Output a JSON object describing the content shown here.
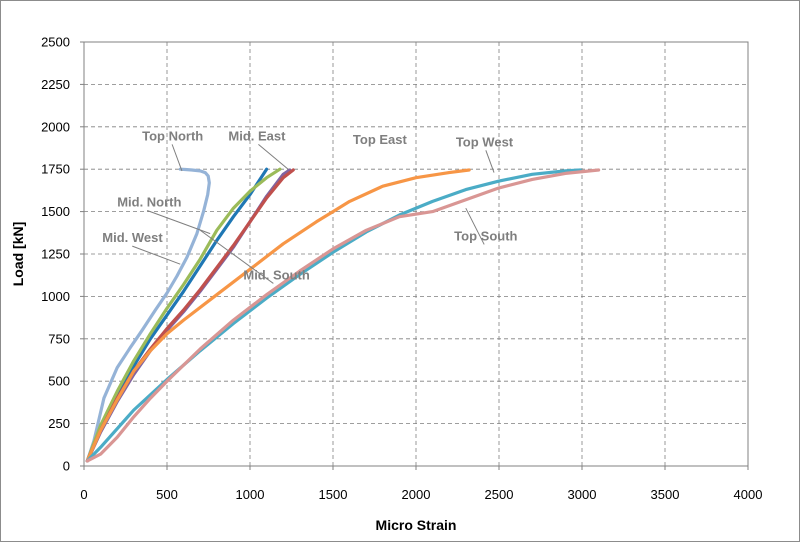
{
  "chart_data": {
    "type": "line",
    "title": "",
    "xlabel": "Micro Strain",
    "ylabel": "Load [kN]",
    "xlim": [
      0,
      4000
    ],
    "ylim": [
      0,
      2500
    ],
    "xticks": [
      0,
      500,
      1000,
      1500,
      2000,
      2500,
      3000,
      3500,
      4000
    ],
    "yticks": [
      0,
      250,
      500,
      750,
      1000,
      1250,
      1500,
      1750,
      2000,
      2250,
      2500
    ],
    "grid": "dashed",
    "legend": "none (series labelled on chart)",
    "series": [
      {
        "name": "Top North",
        "color": "#95b3d7",
        "x": [
          20,
          60,
          120,
          200,
          280,
          350,
          430,
          500,
          560,
          620,
          680,
          720,
          745,
          755,
          748,
          730,
          700,
          650,
          610,
          580
        ],
        "y": [
          30,
          150,
          400,
          580,
          700,
          800,
          920,
          1020,
          1120,
          1230,
          1370,
          1500,
          1600,
          1670,
          1710,
          1730,
          1740,
          1745,
          1748,
          1750
        ]
      },
      {
        "name": "Mid. West",
        "color": "#1f77b4",
        "x": [
          20,
          100,
          200,
          300,
          400,
          500,
          600,
          700,
          800,
          900,
          1000,
          1060,
          1100
        ],
        "y": [
          30,
          220,
          410,
          590,
          750,
          890,
          1030,
          1180,
          1330,
          1470,
          1600,
          1690,
          1750
        ]
      },
      {
        "name": "Mid. North",
        "color": "#9bbb59",
        "x": [
          20,
          100,
          200,
          300,
          400,
          500,
          600,
          700,
          800,
          900,
          1000,
          1100,
          1180
        ],
        "y": [
          30,
          240,
          440,
          620,
          780,
          930,
          1070,
          1220,
          1390,
          1520,
          1620,
          1700,
          1750
        ]
      },
      {
        "name": "Mid. South",
        "color": "#8064a2",
        "x": [
          20,
          100,
          200,
          300,
          400,
          500,
          600,
          700,
          800,
          900,
          1000,
          1100,
          1200,
          1240
        ],
        "y": [
          30,
          200,
          380,
          540,
          680,
          800,
          910,
          1030,
          1160,
          1290,
          1440,
          1590,
          1720,
          1745
        ]
      },
      {
        "name": "Mid. East",
        "color": "#c0504d",
        "x": [
          20,
          100,
          200,
          300,
          400,
          500,
          600,
          700,
          800,
          900,
          1000,
          1100,
          1200,
          1260
        ],
        "y": [
          30,
          210,
          400,
          560,
          690,
          810,
          920,
          1040,
          1170,
          1300,
          1440,
          1580,
          1700,
          1745
        ]
      },
      {
        "name": "Top East",
        "color": "#f79646",
        "x": [
          20,
          100,
          200,
          300,
          400,
          500,
          600,
          800,
          1000,
          1200,
          1400,
          1500,
          1600,
          1800,
          2000,
          2200,
          2320
        ],
        "y": [
          30,
          210,
          390,
          560,
          680,
          780,
          860,
          1010,
          1160,
          1310,
          1440,
          1500,
          1560,
          1650,
          1700,
          1730,
          1745
        ]
      },
      {
        "name": "Top West",
        "color": "#4bacc6",
        "x": [
          20,
          100,
          200,
          300,
          400,
          500,
          700,
          900,
          1100,
          1300,
          1500,
          1700,
          1900,
          2100,
          2300,
          2500,
          2700,
          2900,
          2990
        ],
        "y": [
          30,
          110,
          220,
          330,
          420,
          510,
          680,
          840,
          990,
          1130,
          1260,
          1380,
          1480,
          1560,
          1630,
          1680,
          1720,
          1740,
          1745
        ]
      },
      {
        "name": "Top South",
        "color": "#d99694",
        "x": [
          20,
          100,
          200,
          300,
          400,
          500,
          700,
          900,
          1100,
          1300,
          1500,
          1700,
          1900,
          2100,
          2300,
          2500,
          2700,
          2900,
          3100
        ],
        "y": [
          30,
          70,
          170,
          290,
          400,
          500,
          690,
          860,
          1010,
          1150,
          1280,
          1390,
          1470,
          1500,
          1570,
          1640,
          1690,
          1725,
          1745
        ]
      }
    ],
    "annotations": [
      {
        "text": "Top North",
        "x": 350,
        "y": 1920,
        "line_to": [
          590,
          1740
        ]
      },
      {
        "text": "Mid. East",
        "x": 870,
        "y": 1920,
        "line_to": [
          1230,
          1750
        ]
      },
      {
        "text": "Top East",
        "x": 1620,
        "y": 1900,
        "line_to": null
      },
      {
        "text": "Top West",
        "x": 2240,
        "y": 1885,
        "line_to": [
          2470,
          1730
        ]
      },
      {
        "text": "Mid. North",
        "x": 200,
        "y": 1530,
        "line_to": [
          760,
          1370
        ]
      },
      {
        "text": "Mid. West",
        "x": 110,
        "y": 1320,
        "line_to": [
          580,
          1190
        ]
      },
      {
        "text": "Mid. South",
        "x": 960,
        "y": 1100,
        "line_to": [
          700,
          1390
        ]
      },
      {
        "text": "Top South",
        "x": 2230,
        "y": 1330,
        "line_to": [
          2300,
          1520
        ]
      }
    ]
  }
}
